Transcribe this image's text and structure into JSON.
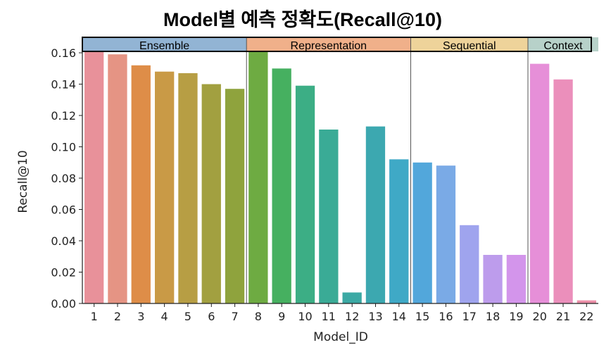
{
  "chart_data": {
    "type": "bar",
    "title": "Model별 예측 정확도(Recall@10)",
    "xlabel": "Model_ID",
    "ylabel": "Recall@10",
    "ylim": [
      0,
      0.16
    ],
    "yticks": [
      "0.00",
      "0.02",
      "0.04",
      "0.06",
      "0.08",
      "0.10",
      "0.12",
      "0.14",
      "0.16"
    ],
    "categories": [
      "1",
      "2",
      "3",
      "4",
      "5",
      "6",
      "7",
      "8",
      "9",
      "10",
      "11",
      "12",
      "13",
      "14",
      "15",
      "16",
      "17",
      "18",
      "19",
      "20",
      "21",
      "22"
    ],
    "values": [
      0.161,
      0.159,
      0.152,
      0.148,
      0.147,
      0.14,
      0.137,
      0.161,
      0.15,
      0.139,
      0.111,
      0.007,
      0.113,
      0.092,
      0.09,
      0.088,
      0.05,
      0.031,
      0.031,
      0.153,
      0.143,
      0.002
    ],
    "bar_colors": [
      "#e8919a",
      "#e59484",
      "#de8d48",
      "#c99a46",
      "#b79e44",
      "#a2a040",
      "#8fa33d",
      "#6eab42",
      "#46b060",
      "#3cae85",
      "#3aab96",
      "#3ba9a4",
      "#3ca8b0",
      "#3fa9c6",
      "#52a7db",
      "#7aaae6",
      "#9fa4ee",
      "#bd9cec",
      "#d395eb",
      "#e68fd8",
      "#eb8fbb",
      "#ec8fa8"
    ],
    "groups": [
      {
        "label": "Ensemble",
        "from": 1,
        "to": 7,
        "color": "#92b4d4"
      },
      {
        "label": "Representation",
        "from": 8,
        "to": 14,
        "color": "#f0b08a"
      },
      {
        "label": "Sequential",
        "from": 15,
        "to": 19,
        "color": "#eed39a"
      },
      {
        "label": "Context",
        "from": 20,
        "to": 22,
        "color": "#b7d1c9"
      }
    ],
    "grid": false,
    "legend": "none"
  }
}
